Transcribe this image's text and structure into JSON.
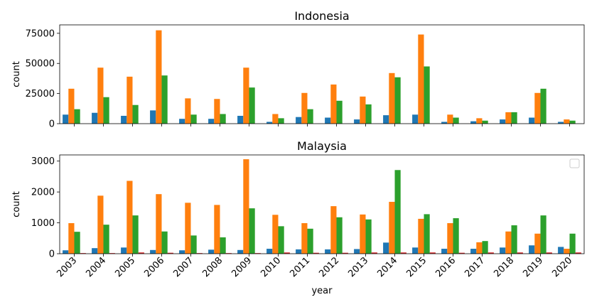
{
  "chart_data": [
    {
      "type": "bar",
      "title": "Indonesia",
      "xlabel": "",
      "ylabel": "count",
      "ylim": [
        0,
        82000
      ],
      "yticks": [
        0,
        25000,
        50000,
        75000
      ],
      "yticklabels": [
        "0",
        "25000",
        "50000",
        "75000"
      ],
      "show_xticklabels": false,
      "categories": [
        "2003",
        "2004",
        "2005",
        "2006",
        "2007",
        "2008",
        "2009",
        "2010",
        "2011",
        "2012",
        "2013",
        "2014",
        "2015",
        "2016",
        "2017",
        "2018",
        "2019",
        "2020"
      ],
      "series": [
        {
          "color": "#1f77b4",
          "values": [
            7500,
            9000,
            6500,
            11000,
            4000,
            4000,
            6500,
            1500,
            5500,
            5000,
            3500,
            7000,
            7500,
            1500,
            2000,
            3500,
            5000,
            1500
          ]
        },
        {
          "color": "#ff7f0e",
          "values": [
            29000,
            46500,
            39000,
            77500,
            21000,
            20500,
            46500,
            8000,
            25500,
            32500,
            22500,
            42000,
            74000,
            7500,
            4500,
            9500,
            25500,
            3500
          ]
        },
        {
          "color": "#2ca02c",
          "values": [
            12000,
            22000,
            15500,
            40000,
            7500,
            8000,
            30000,
            4500,
            12000,
            19000,
            16000,
            38500,
            47500,
            5000,
            2500,
            9500,
            29000,
            2500
          ]
        },
        {
          "color": "#d62728",
          "values": [
            0,
            0,
            0,
            0,
            0,
            0,
            0,
            0,
            0,
            0,
            0,
            0,
            0,
            0,
            0,
            0,
            0,
            0
          ]
        }
      ]
    },
    {
      "type": "bar",
      "title": "Malaysia",
      "xlabel": "year",
      "ylabel": "count",
      "ylim": [
        0,
        3200
      ],
      "yticks": [
        0,
        1000,
        2000,
        3000
      ],
      "yticklabels": [
        "0",
        "1000",
        "2000",
        "3000"
      ],
      "show_xticklabels": true,
      "legend": "top-right",
      "categories": [
        "2003",
        "2004",
        "2005",
        "2006",
        "2007",
        "2008",
        "2009",
        "2010",
        "2011",
        "2012",
        "2013",
        "2014",
        "2015",
        "2016",
        "2017",
        "2018",
        "2019",
        "2020"
      ],
      "series": [
        {
          "color": "#1f77b4",
          "values": [
            110,
            180,
            200,
            120,
            110,
            130,
            120,
            160,
            140,
            140,
            150,
            360,
            200,
            160,
            160,
            200,
            270,
            220
          ]
        },
        {
          "color": "#ff7f0e",
          "values": [
            990,
            1880,
            2360,
            1930,
            1650,
            1580,
            3060,
            1260,
            990,
            1540,
            1270,
            1680,
            1130,
            990,
            370,
            720,
            650,
            160
          ]
        },
        {
          "color": "#2ca02c",
          "values": [
            710,
            940,
            1240,
            720,
            590,
            530,
            1470,
            890,
            810,
            1180,
            1110,
            2710,
            1280,
            1150,
            410,
            920,
            1240,
            650
          ]
        },
        {
          "color": "#d62728",
          "values": [
            20,
            20,
            40,
            30,
            20,
            20,
            20,
            40,
            30,
            30,
            40,
            40,
            40,
            30,
            40,
            40,
            40,
            40
          ]
        }
      ]
    }
  ]
}
